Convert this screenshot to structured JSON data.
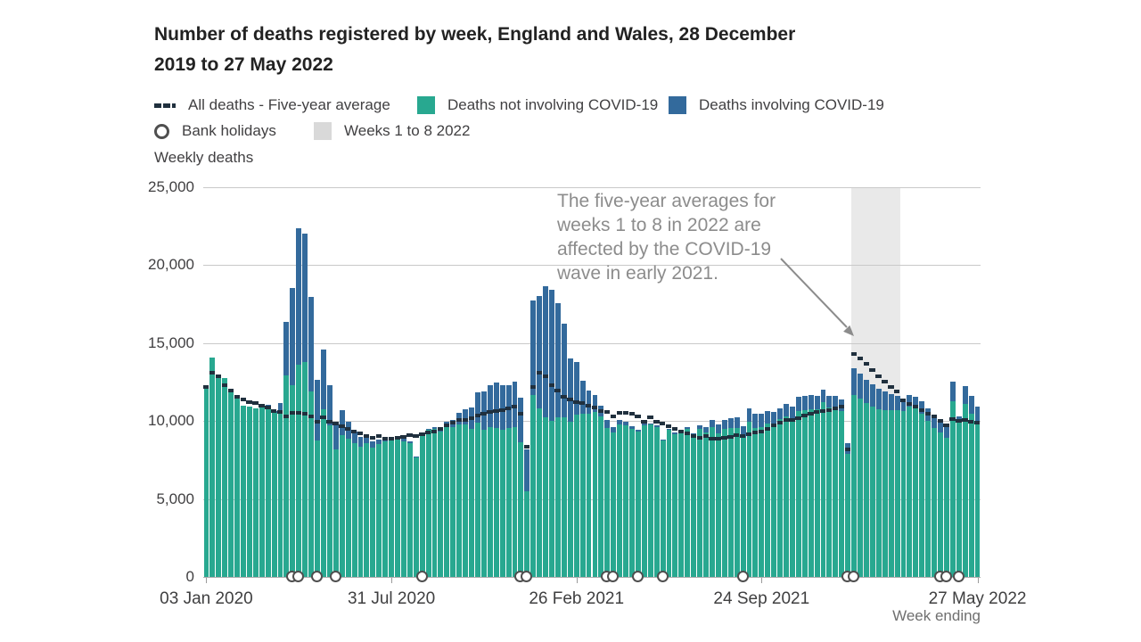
{
  "title": {
    "line1": "Number of deaths registered by week, England and Wales, 28 December",
    "line2": "2019 to 27 May 2022"
  },
  "y_axis_title": "Weekly deaths",
  "x_axis_title": "Week ending",
  "annotation": {
    "text": "The five-year averages for weeks 1 to 8 in 2022 are affected by the COVID-19 wave in early 2021."
  },
  "legend": {
    "items": [
      {
        "id": "five-year-average",
        "label": "All deaths - Five-year average",
        "swatch": "dashes",
        "color": "#20303e"
      },
      {
        "id": "non-covid",
        "label": "Deaths not involving COVID-19",
        "swatch": "square",
        "color": "#28a890"
      },
      {
        "id": "covid",
        "label": "Deaths involving COVID-19",
        "swatch": "square",
        "color": "#336a9c"
      },
      {
        "id": "bank-holidays",
        "label": "Bank holidays",
        "swatch": "circle",
        "color": "#4f4f4f"
      },
      {
        "id": "weeks-band",
        "label": "Weeks 1 to 8 2022",
        "swatch": "square",
        "color": "#d9d9d9"
      }
    ]
  },
  "colors": {
    "non_covid_bar": "#28a890",
    "covid_bar": "#336a9c",
    "average_dash": "#20303e",
    "band": "#e9e9e9",
    "gridline": "#c9c9c9",
    "annotation_text": "#8c8c8c"
  },
  "chart_data": {
    "type": "bar",
    "stacked": true,
    "title": "Number of deaths registered by week, England and Wales, 28 December 2019 to 27 May 2022",
    "ylabel": "Weekly deaths",
    "xlabel": "Week ending",
    "ylim": [
      0,
      25000
    ],
    "yticks": [
      0,
      5000,
      10000,
      15000,
      20000,
      25000
    ],
    "n_weeks": 126,
    "x_tick_labels": [
      {
        "week": 1,
        "label": "03 Jan 2020"
      },
      {
        "week": 31,
        "label": "31 Jul 2020"
      },
      {
        "week": 61,
        "label": "26 Feb 2021"
      },
      {
        "week": 91,
        "label": "24 Sep 2021"
      },
      {
        "week": 126,
        "label": "27 May 2022"
      }
    ],
    "series": [
      {
        "name": "Deaths not involving COVID-19",
        "render": "bar",
        "color": "#28a890",
        "values": [
          12250,
          14050,
          12990,
          12740,
          11860,
          11610,
          10990,
          10940,
          10840,
          10890,
          11010,
          10540,
          10600,
          12910,
          12300,
          13590,
          13760,
          11920,
          8730,
          10760,
          9700,
          8170,
          9120,
          8860,
          8560,
          8370,
          8610,
          8320,
          8530,
          8670,
          8750,
          8790,
          8710,
          8570,
          7640,
          9140,
          9420,
          9500,
          9310,
          9630,
          9610,
          9770,
          9760,
          9510,
          9880,
          9450,
          9610,
          9580,
          9460,
          9540,
          9640,
          8620,
          5500,
          11690,
          10800,
          10250,
          10020,
          10230,
          10260,
          9950,
          10440,
          10460,
          10460,
          10570,
          10270,
          9560,
          9260,
          9800,
          9740,
          9510,
          9310,
          9710,
          9760,
          9640,
          8730,
          9420,
          9170,
          9300,
          9470,
          9030,
          9510,
          9290,
          9630,
          9240,
          9520,
          9560,
          9580,
          8940,
          9980,
          9580,
          9630,
          9860,
          9860,
          10100,
          10310,
          10160,
          10660,
          10720,
          10730,
          10770,
          11220,
          10860,
          10930,
          10630,
          7900,
          11670,
          11450,
          11150,
          10930,
          10780,
          10700,
          10700,
          10700,
          10650,
          10920,
          10790,
          10470,
          9990,
          9560,
          9270,
          8900,
          11270,
          9900,
          11100,
          10450,
          9900
        ]
      },
      {
        "name": "Deaths involving COVID-19",
        "render": "bar",
        "color": "#336a9c",
        "values": [
          0,
          0,
          0,
          0,
          0,
          0,
          0,
          0,
          0,
          0,
          10,
          100,
          540,
          3480,
          6210,
          8760,
          8240,
          6040,
          3930,
          3810,
          2590,
          1650,
          1590,
          1110,
          780,
          610,
          530,
          370,
          300,
          220,
          200,
          150,
          140,
          110,
          100,
          80,
          100,
          140,
          220,
          320,
          440,
          760,
          980,
          1380,
          1940,
          2470,
          2700,
          2880,
          2840,
          2760,
          2910,
          2900,
          2700,
          6060,
          7250,
          8420,
          8430,
          7320,
          5990,
          4080,
          3370,
          2110,
          1500,
          1100,
          720,
          490,
          360,
          260,
          210,
          140,
          120,
          110,
          90,
          90,
          80,
          90,
          110,
          120,
          150,
          190,
          240,
          330,
          440,
          530,
          570,
          610,
          670,
          710,
          860,
          900,
          820,
          770,
          720,
          720,
          770,
          780,
          900,
          920,
          920,
          860,
          820,
          770,
          700,
          750,
          700,
          1720,
          1600,
          1500,
          1420,
          1320,
          1200,
          1050,
          900,
          800,
          750,
          760,
          800,
          820,
          840,
          830,
          800,
          1250,
          400,
          1140,
          1150,
          1050
        ]
      },
      {
        "name": "All deaths - Five-year average",
        "render": "dash-line",
        "color": "#20303e",
        "values": [
          12200,
          13090,
          12900,
          12310,
          11960,
          11570,
          11410,
          11240,
          11180,
          10960,
          10870,
          10650,
          10570,
          10310,
          10520,
          10500,
          10460,
          10300,
          9940,
          10220,
          9970,
          9860,
          9660,
          9490,
          9320,
          9190,
          9050,
          8950,
          9020,
          8890,
          8850,
          8950,
          9010,
          9080,
          9020,
          9180,
          9260,
          9330,
          9520,
          9720,
          9880,
          10050,
          10090,
          10200,
          10340,
          10460,
          10560,
          10620,
          10690,
          10810,
          10940,
          10450,
          8340,
          12180,
          13090,
          12900,
          12310,
          11960,
          11570,
          11410,
          11240,
          11180,
          10960,
          10870,
          10650,
          10570,
          10310,
          10520,
          10500,
          10460,
          10300,
          9940,
          10220,
          9970,
          9860,
          9660,
          9490,
          9320,
          9190,
          9050,
          8950,
          9020,
          8890,
          8850,
          8950,
          9010,
          9080,
          9020,
          9180,
          9260,
          9330,
          9520,
          9720,
          9880,
          10050,
          10090,
          10200,
          10340,
          10460,
          10560,
          10620,
          10690,
          10810,
          10940,
          8200,
          14300,
          14020,
          13700,
          13280,
          12890,
          12520,
          12180,
          11890,
          11320,
          11120,
          10920,
          10680,
          10450,
          10280,
          10020,
          9740,
          10150,
          10000,
          10050,
          9950,
          9870
        ]
      }
    ],
    "bank_holiday_weeks": [
      15,
      16,
      19,
      22,
      36,
      52,
      53,
      66,
      67,
      71,
      75,
      88,
      105,
      106,
      120,
      121,
      123
    ],
    "highlight_band": {
      "label": "Weeks 1 to 8 2022",
      "start_week": 106,
      "end_week": 113,
      "color": "#e9e9e9"
    },
    "legend_position": "top",
    "grid": true
  }
}
